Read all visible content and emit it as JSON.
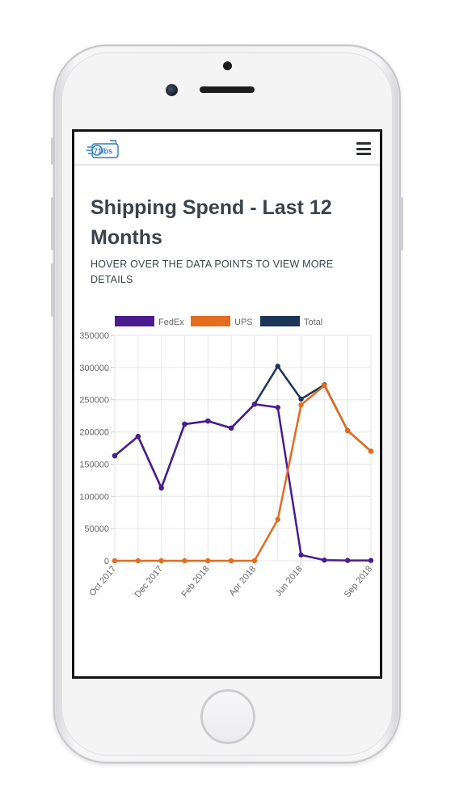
{
  "header": {
    "logo_text": "71lbs",
    "menu_icon": "hamburger-menu-icon"
  },
  "page": {
    "title": "Shipping Spend - Last 12 Months",
    "subtitle": "HOVER OVER THE DATA POINTS TO VIEW MORE DETAILS"
  },
  "colors": {
    "fedex": "#4b1d8f",
    "ups": "#e36c1f",
    "total": "#1c3557",
    "grid": "#e6e6e6",
    "text": "#3b4249"
  },
  "chart_data": {
    "type": "line",
    "x": [
      "Oct 2017",
      "Nov 2017",
      "Dec 2017",
      "Jan 2018",
      "Feb 2018",
      "Mar 2018",
      "Apr 2018",
      "May 2018",
      "Jun 2018",
      "Jul 2018",
      "Aug 2018",
      "Sep 2018"
    ],
    "x_tick_labels": [
      "Oct 2017",
      "Dec 2017",
      "Feb 2018",
      "Apr 2018",
      "Jun 2018",
      "Sep 2018"
    ],
    "series": [
      {
        "name": "FedEx",
        "color": "#4b1d8f",
        "values": [
          163000,
          193000,
          113000,
          212000,
          217000,
          206000,
          243000,
          238000,
          9000,
          1000,
          500,
          500
        ]
      },
      {
        "name": "UPS",
        "color": "#e36c1f",
        "values": [
          0,
          0,
          0,
          0,
          0,
          0,
          0,
          64000,
          242000,
          272000,
          202000,
          170000
        ]
      },
      {
        "name": "Total",
        "color": "#1c3557",
        "values": [
          163000,
          193000,
          113000,
          212000,
          217000,
          206000,
          243000,
          302000,
          251000,
          273000,
          202000,
          170000
        ]
      }
    ],
    "y_ticks": [
      0,
      50000,
      100000,
      150000,
      200000,
      250000,
      300000,
      350000
    ],
    "ylim": [
      0,
      350000
    ],
    "legend_position": "top",
    "grid": true
  }
}
